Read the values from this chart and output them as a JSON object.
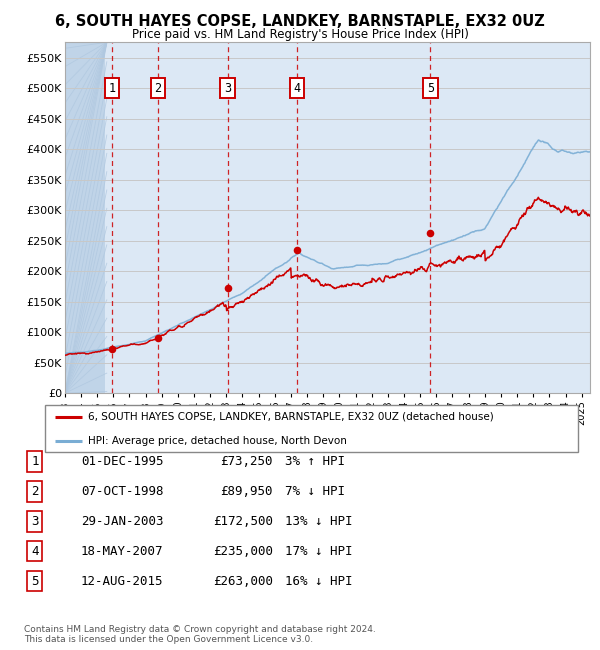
{
  "title": "6, SOUTH HAYES COPSE, LANDKEY, BARNSTAPLE, EX32 0UZ",
  "subtitle": "Price paid vs. HM Land Registry's House Price Index (HPI)",
  "ylim": [
    0,
    575000
  ],
  "yticks": [
    0,
    50000,
    100000,
    150000,
    200000,
    250000,
    300000,
    350000,
    400000,
    450000,
    500000,
    550000
  ],
  "ytick_labels": [
    "£0",
    "£50K",
    "£100K",
    "£150K",
    "£200K",
    "£250K",
    "£300K",
    "£350K",
    "£400K",
    "£450K",
    "£500K",
    "£550K"
  ],
  "sale_dates": [
    1995.92,
    1998.77,
    2003.08,
    2007.38,
    2015.62
  ],
  "sale_prices": [
    73250,
    89950,
    172500,
    235000,
    263000
  ],
  "sale_labels": [
    "1",
    "2",
    "3",
    "4",
    "5"
  ],
  "sale_dates_str": [
    "01-DEC-1995",
    "07-OCT-1998",
    "29-JAN-2003",
    "18-MAY-2007",
    "12-AUG-2015"
  ],
  "sale_prices_str": [
    "£73,250",
    "£89,950",
    "£172,500",
    "£235,000",
    "£263,000"
  ],
  "sale_hpi_str": [
    "3% ↑ HPI",
    "7% ↓ HPI",
    "13% ↓ HPI",
    "17% ↓ HPI",
    "16% ↓ HPI"
  ],
  "legend_house": "6, SOUTH HAYES COPSE, LANDKEY, BARNSTAPLE, EX32 0UZ (detached house)",
  "legend_hpi": "HPI: Average price, detached house, North Devon",
  "footer1": "Contains HM Land Registry data © Crown copyright and database right 2024.",
  "footer2": "This data is licensed under the Open Government Licence v3.0.",
  "house_color": "#cc0000",
  "hpi_color": "#7aadd4",
  "box_color": "#cc0000",
  "bg_color": "#dce8f5",
  "hatch_color": "#c0d4e8",
  "grid_color": "#c8c8c8",
  "vline_color": "#cc0000",
  "xlim_left": 1993.0,
  "xlim_right": 2025.5
}
